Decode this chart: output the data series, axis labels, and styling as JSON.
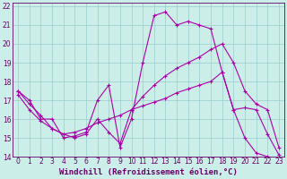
{
  "xlabel": "Windchill (Refroidissement éolien,°C)",
  "xlim": [
    -0.5,
    23.5
  ],
  "ylim": [
    14,
    22.2
  ],
  "yticks": [
    14,
    15,
    16,
    17,
    18,
    19,
    20,
    21,
    22
  ],
  "xticks": [
    0,
    1,
    2,
    3,
    4,
    5,
    6,
    7,
    8,
    9,
    10,
    11,
    12,
    13,
    14,
    15,
    16,
    17,
    18,
    19,
    20,
    21,
    22,
    23
  ],
  "bg_color": "#cceee8",
  "line_color": "#aa00aa",
  "grid_color": "#99cccc",
  "line1_x": [
    0,
    1,
    2,
    3,
    4,
    5,
    6,
    7,
    8,
    9,
    10,
    11,
    12,
    13,
    14,
    15,
    16,
    17,
    18,
    19,
    20,
    21,
    22,
    23
  ],
  "line1_y": [
    17.5,
    17.0,
    16.0,
    16.0,
    15.0,
    15.1,
    15.3,
    17.0,
    17.8,
    14.5,
    16.0,
    19.0,
    21.5,
    21.7,
    21.0,
    21.2,
    21.0,
    20.8,
    18.5,
    16.5,
    15.0,
    14.2,
    14.0,
    13.9
  ],
  "line2_x": [
    0,
    1,
    2,
    3,
    4,
    5,
    6,
    7,
    8,
    9,
    10,
    11,
    12,
    13,
    14,
    15,
    16,
    17,
    18,
    19,
    20,
    21,
    22,
    23
  ],
  "line2_y": [
    17.3,
    16.5,
    15.9,
    15.5,
    15.2,
    15.3,
    15.5,
    15.8,
    16.0,
    16.2,
    16.5,
    16.7,
    16.9,
    17.1,
    17.4,
    17.6,
    17.8,
    18.0,
    18.5,
    16.5,
    16.6,
    16.5,
    15.2,
    14.1
  ],
  "line3_x": [
    0,
    1,
    2,
    3,
    4,
    5,
    6,
    7,
    8,
    9,
    10,
    11,
    12,
    13,
    14,
    15,
    16,
    17,
    18,
    19,
    20,
    21,
    22,
    23
  ],
  "line3_y": [
    17.5,
    16.8,
    16.2,
    15.5,
    15.2,
    15.0,
    15.2,
    16.0,
    15.3,
    14.7,
    16.5,
    17.2,
    17.8,
    18.3,
    18.7,
    19.0,
    19.3,
    19.7,
    20.0,
    19.0,
    17.5,
    16.8,
    16.5,
    14.5
  ],
  "font_color": "#660066",
  "tick_fontsize": 5.5,
  "label_fontsize": 6.5
}
